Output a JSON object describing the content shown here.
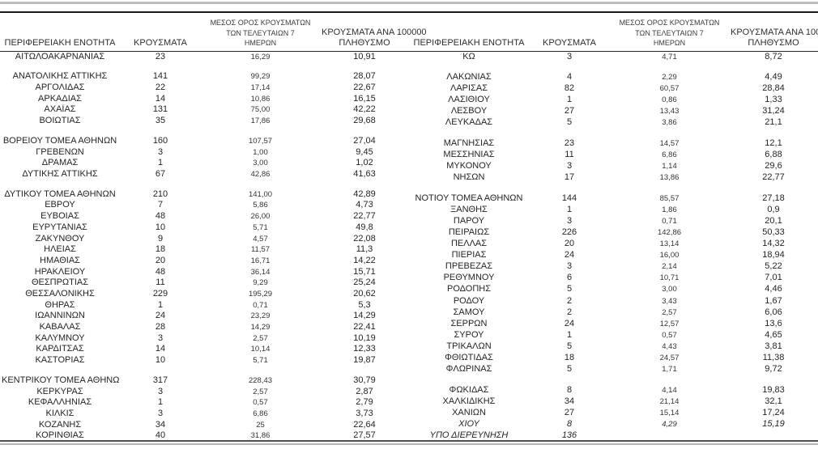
{
  "colors": {
    "text": "#242424",
    "rule_dark": "#1a1a1a",
    "rule_gray": "#bdbdbd"
  },
  "header": {
    "region": "ΠΕΡΙΦΕΡΕΙΑΚΗ ΕΝΟΤΗΤΑ",
    "cases": "ΚΡΟΥΣΜΑΤΑ",
    "avg7": [
      "ΜΕΣΟΣ ΟΡΟΣ ΚΡΟΥΣΜΑΤΩΝ",
      "ΤΩΝ ΤΕΛΕΥΤΑΙΩΝ 7",
      "ΗΜΕΡΩΝ"
    ],
    "per100k": [
      "ΚΡΟΥΣΜΑΤΑ ΑΝΑ 100000",
      "ΠΛΗΘΥΣΜΟ"
    ]
  },
  "tables": [
    {
      "id": "left",
      "groups": [
        [
          {
            "region": "ΑΙΤΩΛΟΑΚΑΡΝΑΝΙΑΣ",
            "cases": "23",
            "avg7": "16,29",
            "per100k": "10,91"
          }
        ],
        [
          {
            "region": "ΑΝΑΤΟΛΙΚΗΣ ΑΤΤΙΚΗΣ",
            "cases": "141",
            "avg7": "99,29",
            "per100k": "28,07"
          },
          {
            "region": "ΑΡΓΟΛΙΔΑΣ",
            "cases": "22",
            "avg7": "17,14",
            "per100k": "22,67"
          },
          {
            "region": "ΑΡΚΑΔΙΑΣ",
            "cases": "14",
            "avg7": "10,86",
            "per100k": "16,15"
          },
          {
            "region": "ΑΧΑΪΑΣ",
            "cases": "131",
            "avg7": "75,00",
            "per100k": "42,22"
          },
          {
            "region": "ΒΟΙΩΤΙΑΣ",
            "cases": "35",
            "avg7": "17,86",
            "per100k": "29,68"
          }
        ],
        [
          {
            "region": "ΒΟΡΕΙΟΥ ΤΟΜΕΑ ΑΘΗΝΩΝ",
            "cases": "160",
            "avg7": "107,57",
            "per100k": "27,04"
          },
          {
            "region": "ΓΡΕΒΕΝΩΝ",
            "cases": "3",
            "avg7": "1,00",
            "per100k": "9,45"
          },
          {
            "region": "ΔΡΑΜΑΣ",
            "cases": "1",
            "avg7": "3,00",
            "per100k": "1,02"
          },
          {
            "region": "ΔΥΤΙΚΗΣ ΑΤΤΙΚΗΣ",
            "cases": "67",
            "avg7": "42,86",
            "per100k": "41,63"
          }
        ],
        [
          {
            "region": "ΔΥΤΙΚΟΥ ΤΟΜΕΑ ΑΘΗΝΩΝ",
            "cases": "210",
            "avg7": "141,00",
            "per100k": "42,89"
          },
          {
            "region": "ΕΒΡΟΥ",
            "cases": "7",
            "avg7": "5,86",
            "per100k": "4,73"
          },
          {
            "region": "ΕΥΒΟΙΑΣ",
            "cases": "48",
            "avg7": "26,00",
            "per100k": "22,77"
          },
          {
            "region": "ΕΥΡΥΤΑΝΙΑΣ",
            "cases": "10",
            "avg7": "5,71",
            "per100k": "49,8"
          },
          {
            "region": "ΖΑΚΥΝΘΟΥ",
            "cases": "9",
            "avg7": "4,57",
            "per100k": "22,08"
          },
          {
            "region": "ΗΛΕΙΑΣ",
            "cases": "18",
            "avg7": "11,57",
            "per100k": "11,3"
          },
          {
            "region": "ΗΜΑΘΙΑΣ",
            "cases": "20",
            "avg7": "16,71",
            "per100k": "14,22"
          },
          {
            "region": "ΗΡΑΚΛΕΙΟΥ",
            "cases": "48",
            "avg7": "36,14",
            "per100k": "15,71"
          },
          {
            "region": "ΘΕΣΠΡΩΤΙΑΣ",
            "cases": "11",
            "avg7": "9,29",
            "per100k": "25,24"
          },
          {
            "region": "ΘΕΣΣΑΛΟΝΙΚΗΣ",
            "cases": "229",
            "avg7": "195,29",
            "per100k": "20,62"
          },
          {
            "region": "ΘΗΡΑΣ",
            "cases": "1",
            "avg7": "0,71",
            "per100k": "5,3"
          },
          {
            "region": "ΙΩΑΝΝΙΝΩΝ",
            "cases": "24",
            "avg7": "23,29",
            "per100k": "14,29"
          },
          {
            "region": "ΚΑΒΑΛΑΣ",
            "cases": "28",
            "avg7": "14,29",
            "per100k": "22,41"
          },
          {
            "region": "ΚΑΛΥΜΝΟΥ",
            "cases": "3",
            "avg7": "2,57",
            "per100k": "10,19"
          },
          {
            "region": "ΚΑΡΔΙΤΣΑΣ",
            "cases": "14",
            "avg7": "10,14",
            "per100k": "12,33"
          },
          {
            "region": "ΚΑΣΤΟΡΙΑΣ",
            "cases": "10",
            "avg7": "5,71",
            "per100k": "19,87"
          }
        ],
        [
          {
            "region": "ΚΕΝΤΡΙΚΟΥ ΤΟΜΕΑ ΑΘΗΝΩΝ",
            "cases": "317",
            "avg7": "228,43",
            "per100k": "30,79"
          },
          {
            "region": "ΚΕΡΚΥΡΑΣ",
            "cases": "3",
            "avg7": "2,57",
            "per100k": "2,87"
          },
          {
            "region": "ΚΕΦΑΛΛΗΝΙΑΣ",
            "cases": "1",
            "avg7": "0,57",
            "per100k": "2,79"
          },
          {
            "region": "ΚΙΛΚΙΣ",
            "cases": "3",
            "avg7": "6,86",
            "per100k": "3,73"
          },
          {
            "region": "ΚΟΖΑΝΗΣ",
            "cases": "34",
            "avg7": "25",
            "per100k": "22,64"
          },
          {
            "region": "ΚΟΡΙΝΘΙΑΣ",
            "cases": "40",
            "avg7": "31,86",
            "per100k": "27,57"
          }
        ]
      ]
    },
    {
      "id": "right",
      "groups": [
        [
          {
            "region": "ΚΩ",
            "cases": "3",
            "avg7": "4,71",
            "per100k": "8,72"
          }
        ],
        [
          {
            "region": "ΛΑΚΩΝΙΑΣ",
            "cases": "4",
            "avg7": "2,29",
            "per100k": "4,49"
          },
          {
            "region": "ΛΑΡΙΣΑΣ",
            "cases": "82",
            "avg7": "60,57",
            "per100k": "28,84"
          },
          {
            "region": "ΛΑΣΙΘΙΟΥ",
            "cases": "1",
            "avg7": "0,86",
            "per100k": "1,33"
          },
          {
            "region": "ΛΕΣΒΟΥ",
            "cases": "27",
            "avg7": "13,43",
            "per100k": "31,24"
          },
          {
            "region": "ΛΕΥΚΑΔΑΣ",
            "cases": "5",
            "avg7": "3,86",
            "per100k": "21,1"
          }
        ],
        [
          {
            "region": "ΜΑΓΝΗΣΙΑΣ",
            "cases": "23",
            "avg7": "14,57",
            "per100k": "12,1"
          },
          {
            "region": "ΜΕΣΣΗΝΙΑΣ",
            "cases": "11",
            "avg7": "6,86",
            "per100k": "6,88"
          },
          {
            "region": "ΜΥΚΟΝΟΥ",
            "cases": "3",
            "avg7": "1,14",
            "per100k": "29,6"
          },
          {
            "region": "ΝΗΣΩΝ",
            "cases": "17",
            "avg7": "13,86",
            "per100k": "22,77"
          }
        ],
        [
          {
            "region": "ΝΟΤΙΟΥ ΤΟΜΕΑ ΑΘΗΝΩΝ",
            "cases": "144",
            "avg7": "85,57",
            "per100k": "27,18"
          },
          {
            "region": "ΞΑΝΘΗΣ",
            "cases": "1",
            "avg7": "1,86",
            "per100k": "0,9"
          },
          {
            "region": "ΠΑΡΟΥ",
            "cases": "3",
            "avg7": "0,71",
            "per100k": "20,1"
          },
          {
            "region": "ΠΕΙΡΑΙΩΣ",
            "cases": "226",
            "avg7": "142,86",
            "per100k": "50,33"
          },
          {
            "region": "ΠΕΛΛΑΣ",
            "cases": "20",
            "avg7": "13,14",
            "per100k": "14,32"
          },
          {
            "region": "ΠΙΕΡΙΑΣ",
            "cases": "24",
            "avg7": "16,00",
            "per100k": "18,94"
          },
          {
            "region": "ΠΡΕΒΕΖΑΣ",
            "cases": "3",
            "avg7": "2,14",
            "per100k": "5,22"
          },
          {
            "region": "ΡΕΘΥΜΝΟΥ",
            "cases": "6",
            "avg7": "10,71",
            "per100k": "7,01"
          },
          {
            "region": "ΡΟΔΟΠΗΣ",
            "cases": "5",
            "avg7": "3,00",
            "per100k": "4,46"
          },
          {
            "region": "ΡΟΔΟΥ",
            "cases": "2",
            "avg7": "3,43",
            "per100k": "1,67"
          },
          {
            "region": "ΣΑΜΟΥ",
            "cases": "2",
            "avg7": "2,57",
            "per100k": "6,06"
          },
          {
            "region": "ΣΕΡΡΩΝ",
            "cases": "24",
            "avg7": "12,57",
            "per100k": "13,6"
          },
          {
            "region": "ΣΥΡΟΥ",
            "cases": "1",
            "avg7": "0,57",
            "per100k": "4,65"
          },
          {
            "region": "ΤΡΙΚΑΛΩΝ",
            "cases": "5",
            "avg7": "4,43",
            "per100k": "3,81"
          },
          {
            "region": "ΦΘΙΩΤΙΔΑΣ",
            "cases": "18",
            "avg7": "24,57",
            "per100k": "11,38"
          },
          {
            "region": "ΦΛΩΡΙΝΑΣ",
            "cases": "5",
            "avg7": "1,71",
            "per100k": "9,72"
          }
        ],
        [
          {
            "region": "ΦΩΚΙΔΑΣ",
            "cases": "8",
            "avg7": "4,14",
            "per100k": "19,83"
          },
          {
            "region": "ΧΑΛΚΙΔΙΚΗΣ",
            "cases": "34",
            "avg7": "21,14",
            "per100k": "32,1"
          },
          {
            "region": "ΧΑΝΙΩΝ",
            "cases": "27",
            "avg7": "15,14",
            "per100k": "17,24"
          },
          {
            "region": "ΧΙΟΥ",
            "cases": "8",
            "avg7": "4,29",
            "per100k": "15,19",
            "italic": true
          },
          {
            "region": "ΥΠΟ ΔΙΕΡΕΥΝΗΣΗ",
            "cases": "136",
            "avg7": "",
            "per100k": "",
            "italic": true
          }
        ]
      ]
    }
  ]
}
